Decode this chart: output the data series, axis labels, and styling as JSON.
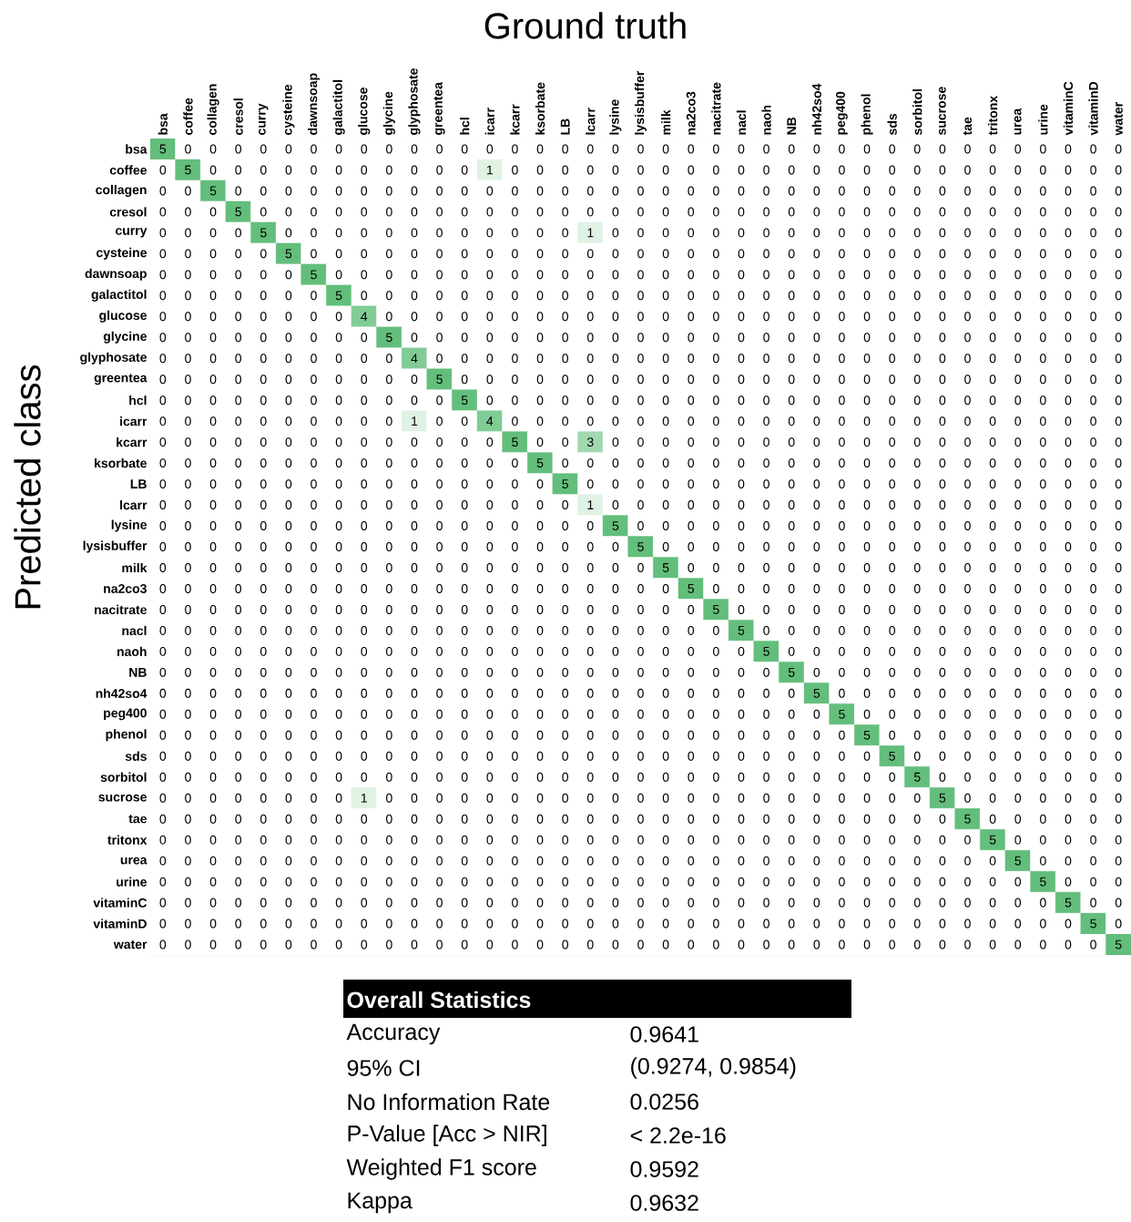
{
  "chart_data": {
    "type": "heatmap",
    "xlabel": "Ground truth",
    "ylabel": "Predicted class",
    "categories": [
      "bsa",
      "coffee",
      "collagen",
      "cresol",
      "curry",
      "cysteine",
      "dawnsoap",
      "galactitol",
      "glucose",
      "glycine",
      "glyphosate",
      "greentea",
      "hcl",
      "icarr",
      "kcarr",
      "ksorbate",
      "LB",
      "lcarr",
      "lysine",
      "lysisbuffer",
      "milk",
      "na2co3",
      "nacitrate",
      "nacl",
      "naoh",
      "NB",
      "nh42so4",
      "peg400",
      "phenol",
      "sds",
      "sorbitol",
      "sucrose",
      "tae",
      "tritonx",
      "urea",
      "urine",
      "vitaminC",
      "vitaminD",
      "water"
    ],
    "y_categories": [
      "bsa",
      "coffee",
      "collagen",
      "cresol",
      "curry",
      "cysteine",
      "dawnsoap",
      "galactitol",
      "glucose",
      "glycine",
      "glyphosate",
      "greentea",
      "hcl",
      "icarr",
      "kcarr",
      "ksorbate",
      "LB",
      "lcarr",
      "lysine",
      "lysisbuffer",
      "milk",
      "na2co3",
      "nacitrate",
      "nacl",
      "naoh",
      "NB",
      "nh42so4",
      "peg400",
      "phenol",
      "sds",
      "sorbitol",
      "sucrose",
      "tae",
      "tritonx",
      "urea",
      "urine",
      "vitaminC",
      "vitaminD",
      "water"
    ],
    "cells": [
      [
        5,
        0,
        0,
        0,
        0,
        0,
        0,
        0,
        0,
        0,
        0,
        0,
        0,
        0,
        0,
        0,
        0,
        0,
        0,
        0,
        0,
        0,
        0,
        0,
        0,
        0,
        0,
        0,
        0,
        0,
        0,
        0,
        0,
        0,
        0,
        0,
        0,
        0,
        0
      ],
      [
        0,
        5,
        0,
        0,
        0,
        0,
        0,
        0,
        0,
        0,
        0,
        0,
        0,
        1,
        0,
        0,
        0,
        0,
        0,
        0,
        0,
        0,
        0,
        0,
        0,
        0,
        0,
        0,
        0,
        0,
        0,
        0,
        0,
        0,
        0,
        0,
        0,
        0,
        0
      ],
      [
        0,
        0,
        5,
        0,
        0,
        0,
        0,
        0,
        0,
        0,
        0,
        0,
        0,
        0,
        0,
        0,
        0,
        0,
        0,
        0,
        0,
        0,
        0,
        0,
        0,
        0,
        0,
        0,
        0,
        0,
        0,
        0,
        0,
        0,
        0,
        0,
        0,
        0,
        0
      ],
      [
        0,
        0,
        0,
        5,
        0,
        0,
        0,
        0,
        0,
        0,
        0,
        0,
        0,
        0,
        0,
        0,
        0,
        0,
        0,
        0,
        0,
        0,
        0,
        0,
        0,
        0,
        0,
        0,
        0,
        0,
        0,
        0,
        0,
        0,
        0,
        0,
        0,
        0,
        0
      ],
      [
        0,
        0,
        0,
        0,
        5,
        0,
        0,
        0,
        0,
        0,
        0,
        0,
        0,
        0,
        0,
        0,
        0,
        1,
        0,
        0,
        0,
        0,
        0,
        0,
        0,
        0,
        0,
        0,
        0,
        0,
        0,
        0,
        0,
        0,
        0,
        0,
        0,
        0,
        0
      ],
      [
        0,
        0,
        0,
        0,
        0,
        5,
        0,
        0,
        0,
        0,
        0,
        0,
        0,
        0,
        0,
        0,
        0,
        0,
        0,
        0,
        0,
        0,
        0,
        0,
        0,
        0,
        0,
        0,
        0,
        0,
        0,
        0,
        0,
        0,
        0,
        0,
        0,
        0,
        0
      ],
      [
        0,
        0,
        0,
        0,
        0,
        0,
        5,
        0,
        0,
        0,
        0,
        0,
        0,
        0,
        0,
        0,
        0,
        0,
        0,
        0,
        0,
        0,
        0,
        0,
        0,
        0,
        0,
        0,
        0,
        0,
        0,
        0,
        0,
        0,
        0,
        0,
        0,
        0,
        0
      ],
      [
        0,
        0,
        0,
        0,
        0,
        0,
        0,
        5,
        0,
        0,
        0,
        0,
        0,
        0,
        0,
        0,
        0,
        0,
        0,
        0,
        0,
        0,
        0,
        0,
        0,
        0,
        0,
        0,
        0,
        0,
        0,
        0,
        0,
        0,
        0,
        0,
        0,
        0,
        0
      ],
      [
        0,
        0,
        0,
        0,
        0,
        0,
        0,
        0,
        4,
        0,
        0,
        0,
        0,
        0,
        0,
        0,
        0,
        0,
        0,
        0,
        0,
        0,
        0,
        0,
        0,
        0,
        0,
        0,
        0,
        0,
        0,
        0,
        0,
        0,
        0,
        0,
        0,
        0,
        0
      ],
      [
        0,
        0,
        0,
        0,
        0,
        0,
        0,
        0,
        0,
        5,
        0,
        0,
        0,
        0,
        0,
        0,
        0,
        0,
        0,
        0,
        0,
        0,
        0,
        0,
        0,
        0,
        0,
        0,
        0,
        0,
        0,
        0,
        0,
        0,
        0,
        0,
        0,
        0,
        0
      ],
      [
        0,
        0,
        0,
        0,
        0,
        0,
        0,
        0,
        0,
        0,
        4,
        0,
        0,
        0,
        0,
        0,
        0,
        0,
        0,
        0,
        0,
        0,
        0,
        0,
        0,
        0,
        0,
        0,
        0,
        0,
        0,
        0,
        0,
        0,
        0,
        0,
        0,
        0,
        0
      ],
      [
        0,
        0,
        0,
        0,
        0,
        0,
        0,
        0,
        0,
        0,
        0,
        5,
        0,
        0,
        0,
        0,
        0,
        0,
        0,
        0,
        0,
        0,
        0,
        0,
        0,
        0,
        0,
        0,
        0,
        0,
        0,
        0,
        0,
        0,
        0,
        0,
        0,
        0,
        0
      ],
      [
        0,
        0,
        0,
        0,
        0,
        0,
        0,
        0,
        0,
        0,
        0,
        0,
        5,
        0,
        0,
        0,
        0,
        0,
        0,
        0,
        0,
        0,
        0,
        0,
        0,
        0,
        0,
        0,
        0,
        0,
        0,
        0,
        0,
        0,
        0,
        0,
        0,
        0,
        0
      ],
      [
        0,
        0,
        0,
        0,
        0,
        0,
        0,
        0,
        0,
        0,
        1,
        0,
        0,
        4,
        0,
        0,
        0,
        0,
        0,
        0,
        0,
        0,
        0,
        0,
        0,
        0,
        0,
        0,
        0,
        0,
        0,
        0,
        0,
        0,
        0,
        0,
        0,
        0,
        0
      ],
      [
        0,
        0,
        0,
        0,
        0,
        0,
        0,
        0,
        0,
        0,
        0,
        0,
        0,
        0,
        5,
        0,
        0,
        3,
        0,
        0,
        0,
        0,
        0,
        0,
        0,
        0,
        0,
        0,
        0,
        0,
        0,
        0,
        0,
        0,
        0,
        0,
        0,
        0,
        0
      ],
      [
        0,
        0,
        0,
        0,
        0,
        0,
        0,
        0,
        0,
        0,
        0,
        0,
        0,
        0,
        0,
        5,
        0,
        0,
        0,
        0,
        0,
        0,
        0,
        0,
        0,
        0,
        0,
        0,
        0,
        0,
        0,
        0,
        0,
        0,
        0,
        0,
        0,
        0,
        0
      ],
      [
        0,
        0,
        0,
        0,
        0,
        0,
        0,
        0,
        0,
        0,
        0,
        0,
        0,
        0,
        0,
        0,
        5,
        0,
        0,
        0,
        0,
        0,
        0,
        0,
        0,
        0,
        0,
        0,
        0,
        0,
        0,
        0,
        0,
        0,
        0,
        0,
        0,
        0,
        0
      ],
      [
        0,
        0,
        0,
        0,
        0,
        0,
        0,
        0,
        0,
        0,
        0,
        0,
        0,
        0,
        0,
        0,
        0,
        1,
        0,
        0,
        0,
        0,
        0,
        0,
        0,
        0,
        0,
        0,
        0,
        0,
        0,
        0,
        0,
        0,
        0,
        0,
        0,
        0,
        0
      ],
      [
        0,
        0,
        0,
        0,
        0,
        0,
        0,
        0,
        0,
        0,
        0,
        0,
        0,
        0,
        0,
        0,
        0,
        0,
        5,
        0,
        0,
        0,
        0,
        0,
        0,
        0,
        0,
        0,
        0,
        0,
        0,
        0,
        0,
        0,
        0,
        0,
        0,
        0,
        0
      ],
      [
        0,
        0,
        0,
        0,
        0,
        0,
        0,
        0,
        0,
        0,
        0,
        0,
        0,
        0,
        0,
        0,
        0,
        0,
        0,
        5,
        0,
        0,
        0,
        0,
        0,
        0,
        0,
        0,
        0,
        0,
        0,
        0,
        0,
        0,
        0,
        0,
        0,
        0,
        0
      ],
      [
        0,
        0,
        0,
        0,
        0,
        0,
        0,
        0,
        0,
        0,
        0,
        0,
        0,
        0,
        0,
        0,
        0,
        0,
        0,
        0,
        5,
        0,
        0,
        0,
        0,
        0,
        0,
        0,
        0,
        0,
        0,
        0,
        0,
        0,
        0,
        0,
        0,
        0,
        0
      ],
      [
        0,
        0,
        0,
        0,
        0,
        0,
        0,
        0,
        0,
        0,
        0,
        0,
        0,
        0,
        0,
        0,
        0,
        0,
        0,
        0,
        0,
        5,
        0,
        0,
        0,
        0,
        0,
        0,
        0,
        0,
        0,
        0,
        0,
        0,
        0,
        0,
        0,
        0,
        0
      ],
      [
        0,
        0,
        0,
        0,
        0,
        0,
        0,
        0,
        0,
        0,
        0,
        0,
        0,
        0,
        0,
        0,
        0,
        0,
        0,
        0,
        0,
        0,
        5,
        0,
        0,
        0,
        0,
        0,
        0,
        0,
        0,
        0,
        0,
        0,
        0,
        0,
        0,
        0,
        0
      ],
      [
        0,
        0,
        0,
        0,
        0,
        0,
        0,
        0,
        0,
        0,
        0,
        0,
        0,
        0,
        0,
        0,
        0,
        0,
        0,
        0,
        0,
        0,
        0,
        5,
        0,
        0,
        0,
        0,
        0,
        0,
        0,
        0,
        0,
        0,
        0,
        0,
        0,
        0,
        0
      ],
      [
        0,
        0,
        0,
        0,
        0,
        0,
        0,
        0,
        0,
        0,
        0,
        0,
        0,
        0,
        0,
        0,
        0,
        0,
        0,
        0,
        0,
        0,
        0,
        0,
        5,
        0,
        0,
        0,
        0,
        0,
        0,
        0,
        0,
        0,
        0,
        0,
        0,
        0,
        0
      ],
      [
        0,
        0,
        0,
        0,
        0,
        0,
        0,
        0,
        0,
        0,
        0,
        0,
        0,
        0,
        0,
        0,
        0,
        0,
        0,
        0,
        0,
        0,
        0,
        0,
        0,
        5,
        0,
        0,
        0,
        0,
        0,
        0,
        0,
        0,
        0,
        0,
        0,
        0,
        0
      ],
      [
        0,
        0,
        0,
        0,
        0,
        0,
        0,
        0,
        0,
        0,
        0,
        0,
        0,
        0,
        0,
        0,
        0,
        0,
        0,
        0,
        0,
        0,
        0,
        0,
        0,
        0,
        5,
        0,
        0,
        0,
        0,
        0,
        0,
        0,
        0,
        0,
        0,
        0,
        0
      ],
      [
        0,
        0,
        0,
        0,
        0,
        0,
        0,
        0,
        0,
        0,
        0,
        0,
        0,
        0,
        0,
        0,
        0,
        0,
        0,
        0,
        0,
        0,
        0,
        0,
        0,
        0,
        0,
        5,
        0,
        0,
        0,
        0,
        0,
        0,
        0,
        0,
        0,
        0,
        0
      ],
      [
        0,
        0,
        0,
        0,
        0,
        0,
        0,
        0,
        0,
        0,
        0,
        0,
        0,
        0,
        0,
        0,
        0,
        0,
        0,
        0,
        0,
        0,
        0,
        0,
        0,
        0,
        0,
        0,
        5,
        0,
        0,
        0,
        0,
        0,
        0,
        0,
        0,
        0,
        0
      ],
      [
        0,
        0,
        0,
        0,
        0,
        0,
        0,
        0,
        0,
        0,
        0,
        0,
        0,
        0,
        0,
        0,
        0,
        0,
        0,
        0,
        0,
        0,
        0,
        0,
        0,
        0,
        0,
        0,
        0,
        5,
        0,
        0,
        0,
        0,
        0,
        0,
        0,
        0,
        0
      ],
      [
        0,
        0,
        0,
        0,
        0,
        0,
        0,
        0,
        0,
        0,
        0,
        0,
        0,
        0,
        0,
        0,
        0,
        0,
        0,
        0,
        0,
        0,
        0,
        0,
        0,
        0,
        0,
        0,
        0,
        0,
        5,
        0,
        0,
        0,
        0,
        0,
        0,
        0,
        0
      ],
      [
        0,
        0,
        0,
        0,
        0,
        0,
        0,
        0,
        1,
        0,
        0,
        0,
        0,
        0,
        0,
        0,
        0,
        0,
        0,
        0,
        0,
        0,
        0,
        0,
        0,
        0,
        0,
        0,
        0,
        0,
        0,
        5,
        0,
        0,
        0,
        0,
        0,
        0,
        0
      ],
      [
        0,
        0,
        0,
        0,
        0,
        0,
        0,
        0,
        0,
        0,
        0,
        0,
        0,
        0,
        0,
        0,
        0,
        0,
        0,
        0,
        0,
        0,
        0,
        0,
        0,
        0,
        0,
        0,
        0,
        0,
        0,
        0,
        5,
        0,
        0,
        0,
        0,
        0,
        0
      ],
      [
        0,
        0,
        0,
        0,
        0,
        0,
        0,
        0,
        0,
        0,
        0,
        0,
        0,
        0,
        0,
        0,
        0,
        0,
        0,
        0,
        0,
        0,
        0,
        0,
        0,
        0,
        0,
        0,
        0,
        0,
        0,
        0,
        0,
        5,
        0,
        0,
        0,
        0,
        0
      ],
      [
        0,
        0,
        0,
        0,
        0,
        0,
        0,
        0,
        0,
        0,
        0,
        0,
        0,
        0,
        0,
        0,
        0,
        0,
        0,
        0,
        0,
        0,
        0,
        0,
        0,
        0,
        0,
        0,
        0,
        0,
        0,
        0,
        0,
        0,
        5,
        0,
        0,
        0,
        0
      ],
      [
        0,
        0,
        0,
        0,
        0,
        0,
        0,
        0,
        0,
        0,
        0,
        0,
        0,
        0,
        0,
        0,
        0,
        0,
        0,
        0,
        0,
        0,
        0,
        0,
        0,
        0,
        0,
        0,
        0,
        0,
        0,
        0,
        0,
        0,
        0,
        5,
        0,
        0,
        0
      ],
      [
        0,
        0,
        0,
        0,
        0,
        0,
        0,
        0,
        0,
        0,
        0,
        0,
        0,
        0,
        0,
        0,
        0,
        0,
        0,
        0,
        0,
        0,
        0,
        0,
        0,
        0,
        0,
        0,
        0,
        0,
        0,
        0,
        0,
        0,
        0,
        0,
        5,
        0,
        0
      ],
      [
        0,
        0,
        0,
        0,
        0,
        0,
        0,
        0,
        0,
        0,
        0,
        0,
        0,
        0,
        0,
        0,
        0,
        0,
        0,
        0,
        0,
        0,
        0,
        0,
        0,
        0,
        0,
        0,
        0,
        0,
        0,
        0,
        0,
        0,
        0,
        0,
        0,
        5,
        0
      ],
      [
        0,
        0,
        0,
        0,
        0,
        0,
        0,
        0,
        0,
        0,
        0,
        0,
        0,
        0,
        0,
        0,
        0,
        0,
        0,
        0,
        0,
        0,
        0,
        0,
        0,
        0,
        0,
        0,
        0,
        0,
        0,
        0,
        0,
        0,
        0,
        0,
        0,
        0,
        5
      ]
    ],
    "colors": [
      "#ffffff",
      "#63be7b"
    ],
    "data_labels": true,
    "annotations": [
      "Overall Statistics",
      "Accuracy",
      "0.9641",
      "95% CI",
      "(0.9274, 0.9854)",
      "No Information Rate",
      "0.0256",
      "P-Value [Acc > NIR]",
      "< 2.2e-16",
      "Weighted F1 score",
      "0.9592",
      "Kappa",
      "0.9632"
    ]
  }
}
